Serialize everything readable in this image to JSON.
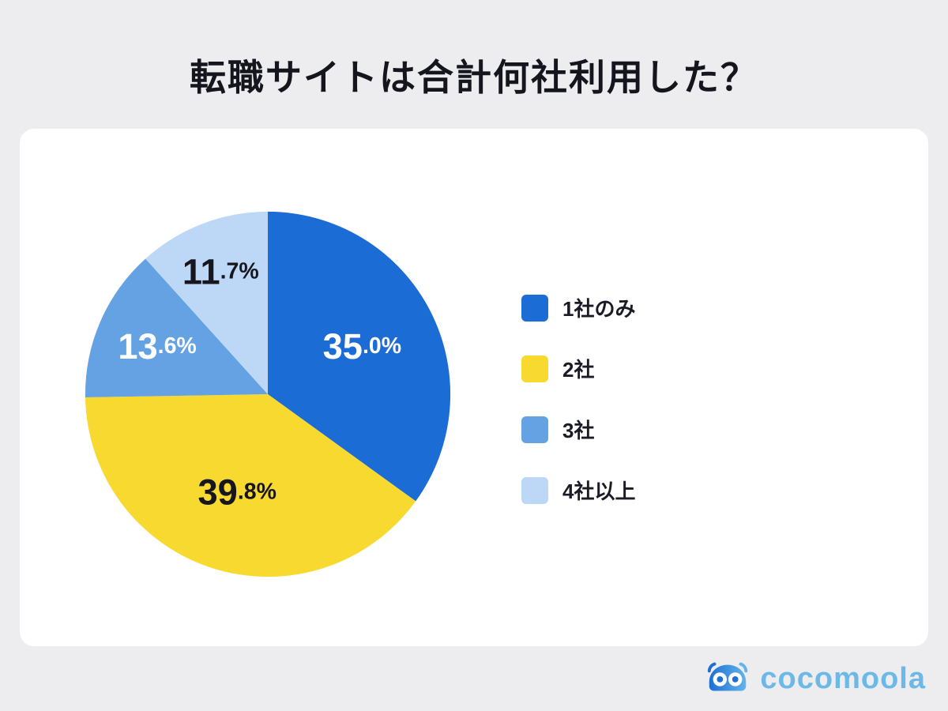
{
  "title": "転職サイトは合計何社利用した？",
  "chart_data": {
    "type": "pie",
    "labels": [
      "1社のみ",
      "2社",
      "3社",
      "4社以上"
    ],
    "values": [
      35.0,
      39.8,
      13.6,
      11.7
    ],
    "value_format": "percent_one_decimal",
    "colors": [
      "#1c6cd6",
      "#f8d930",
      "#64a2e4",
      "#bdd8f6"
    ],
    "label_text_colors": [
      "#ffffff",
      "#16161f",
      "#ffffff",
      "#16161f"
    ],
    "start_angle_deg": 0,
    "direction": "clockwise",
    "legend_position": "right",
    "title": "転職サイトは合計何社利用した？"
  },
  "logo": {
    "text": "cocomoola",
    "text_color": "#6cb9e8",
    "icon_color_dark": "#1d6fd6",
    "icon_color_light": "#62b4ea"
  }
}
